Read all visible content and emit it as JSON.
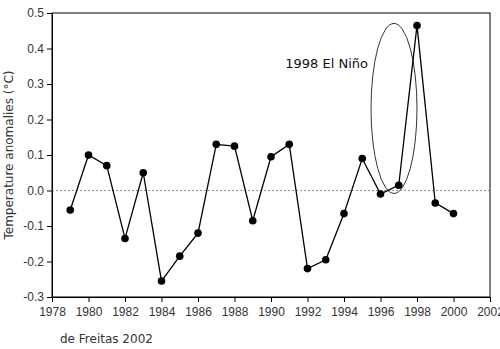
{
  "chart_data": {
    "type": "line",
    "y_label": "Temperature anomalies (°C)",
    "source": "de Freitas 2002",
    "annotation": {
      "text": "1998 El Niño",
      "x": 1998,
      "y": 0.465
    },
    "hlines": [
      0
    ],
    "x": [
      1979,
      1980,
      1981,
      1982,
      1983,
      1984,
      1985,
      1986,
      1987,
      1988,
      1989,
      1990,
      1991,
      1992,
      1993,
      1994,
      1995,
      1996,
      1997,
      1998,
      1999,
      2000
    ],
    "series": [
      {
        "color": "#000000",
        "marker": "circle",
        "line_style": "solid",
        "values": [
          -0.055,
          0.1,
          0.07,
          -0.135,
          0.05,
          -0.255,
          -0.185,
          -0.12,
          0.13,
          0.125,
          -0.085,
          0.095,
          0.13,
          -0.22,
          -0.195,
          -0.065,
          0.09,
          -0.01,
          0.015,
          0.465,
          -0.035,
          -0.065
        ]
      }
    ],
    "xlim": [
      1978,
      2002
    ],
    "xticks": [
      1978,
      1980,
      1982,
      1984,
      1986,
      1988,
      1990,
      1992,
      1994,
      1996,
      1998,
      2000,
      2002
    ],
    "ylim": [
      -0.3,
      0.5
    ],
    "yticks": [
      -0.3,
      -0.2,
      -0.1,
      {
        "value": 0,
        "label": "0.0"
      },
      0.1,
      0.2,
      0.3,
      0.4,
      0.5
    ],
    "grid": false
  }
}
